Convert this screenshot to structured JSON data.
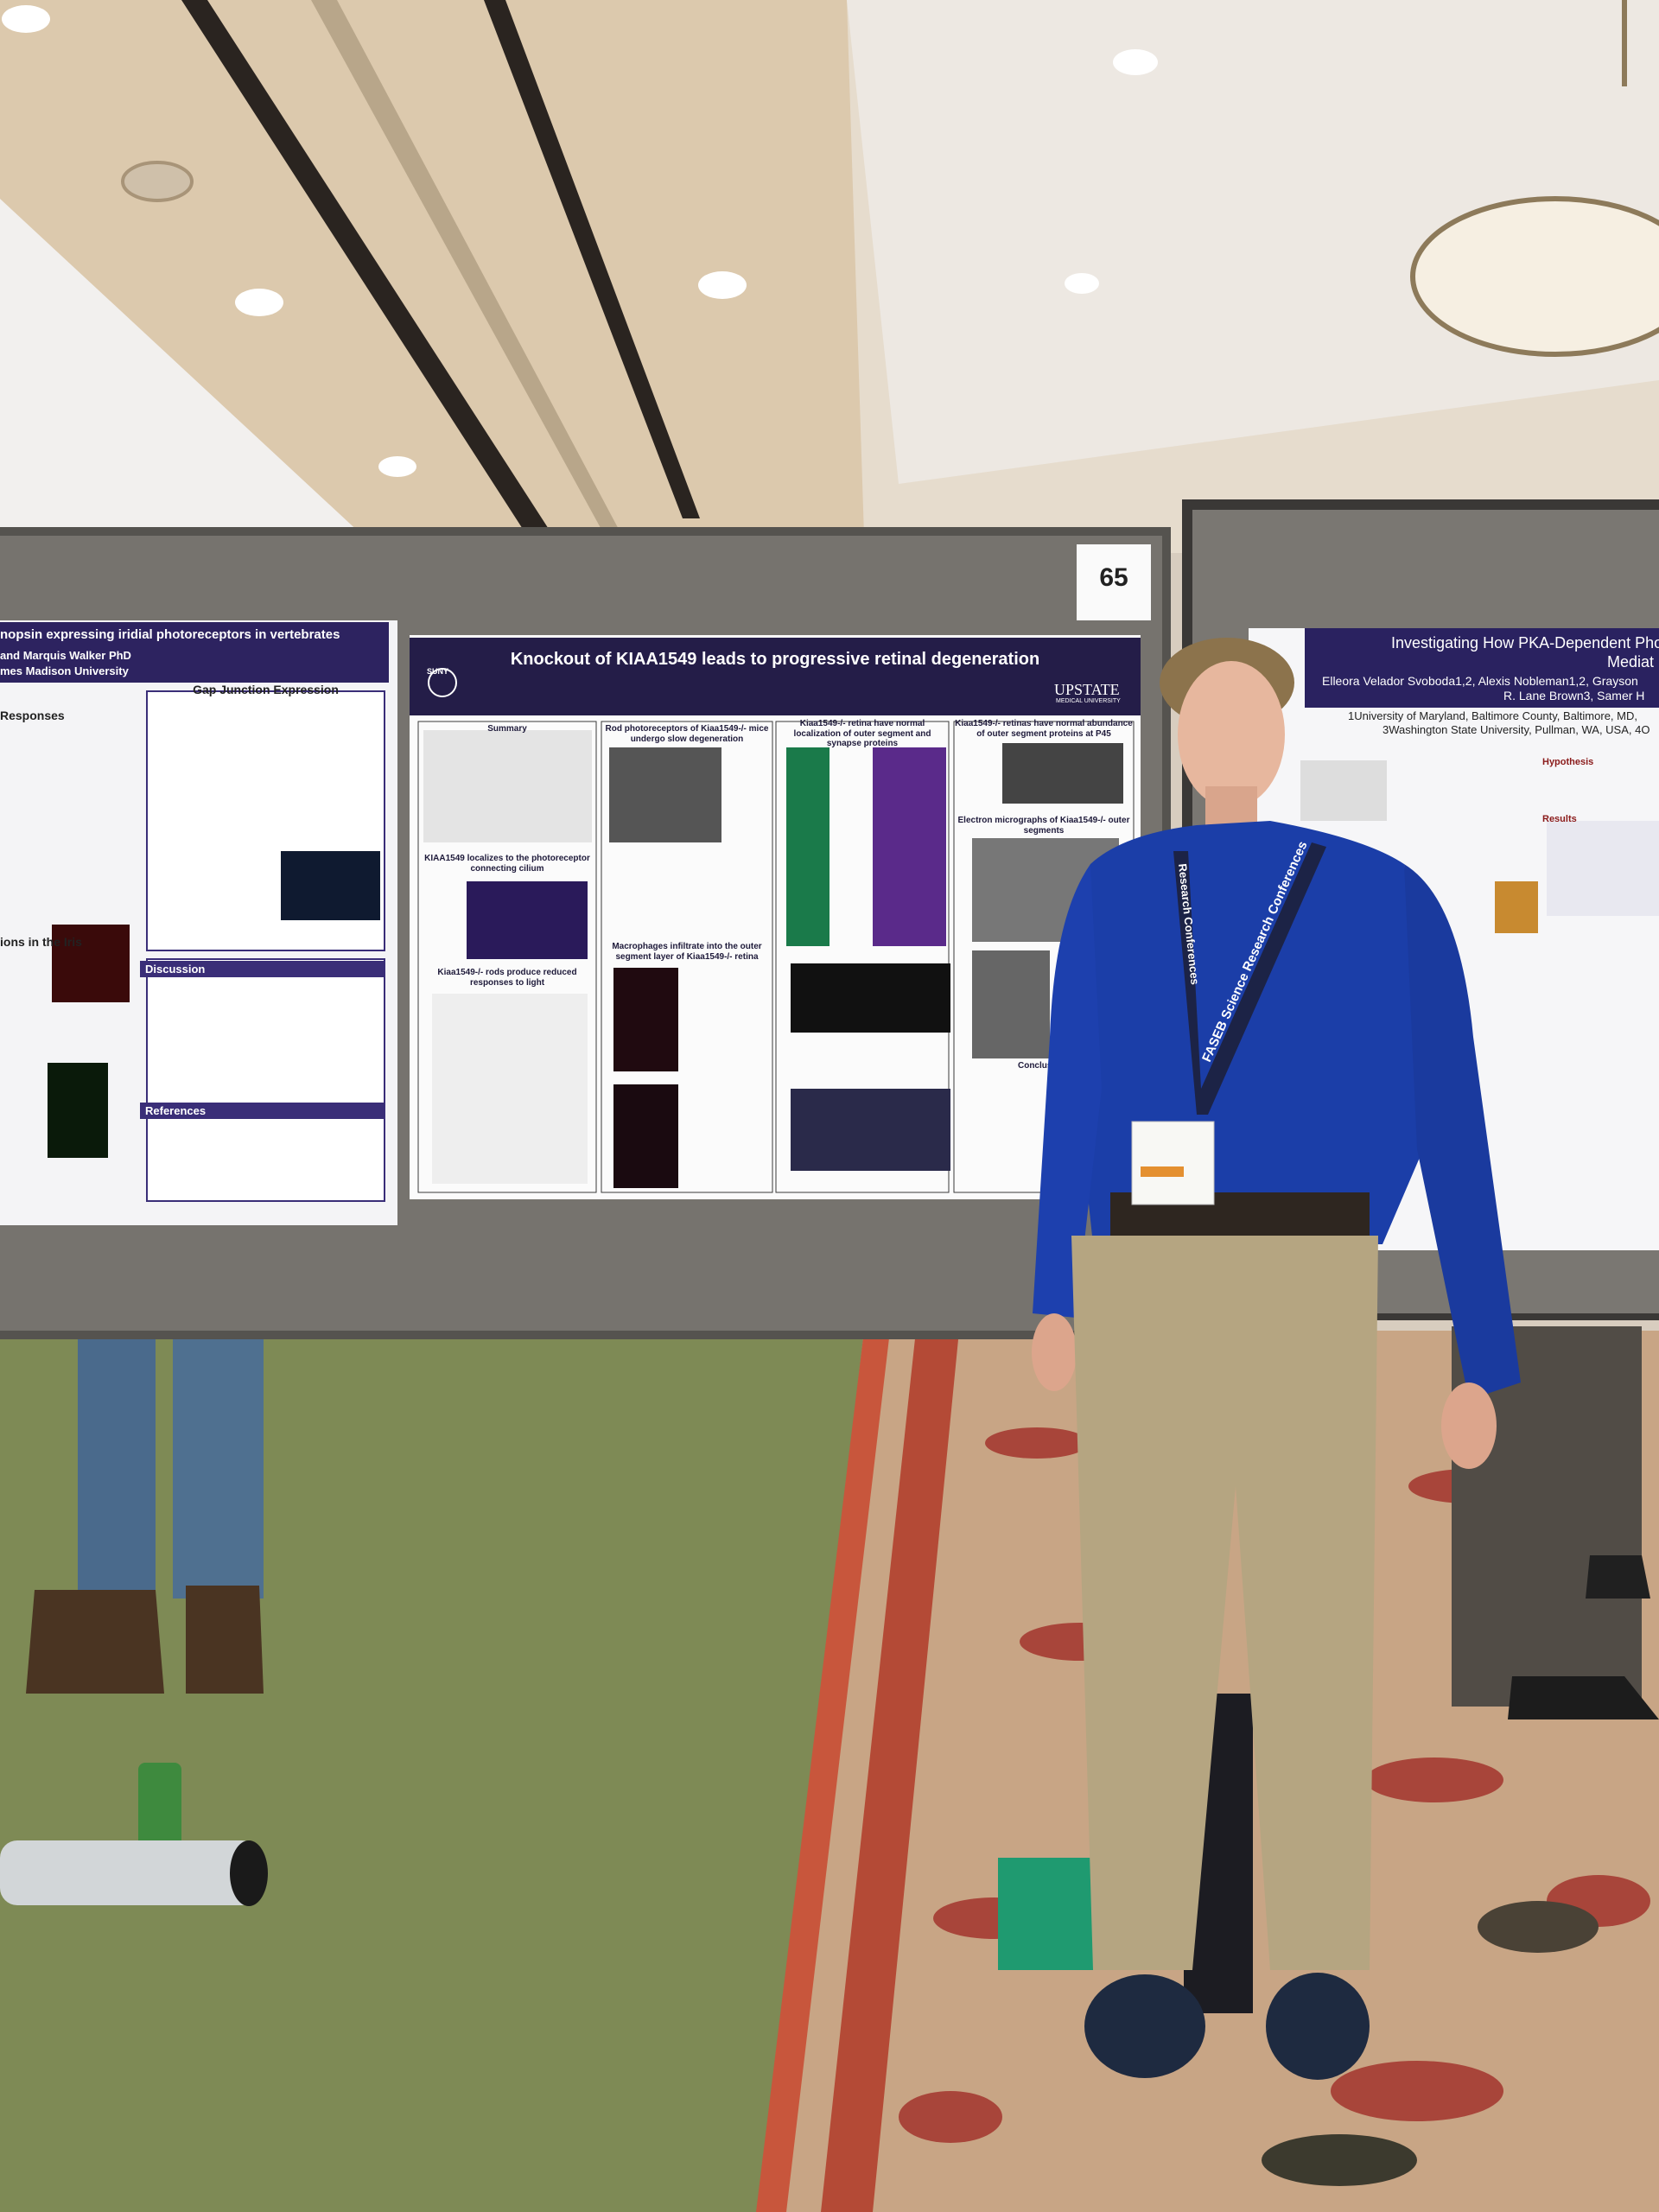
{
  "signage": {
    "board_number": "65"
  },
  "main_poster": {
    "title": "Knockout of KIAA1549 leads to progressive retinal degeneration",
    "logo_left": "SUNY",
    "logo_right": "UPSTATE",
    "logo_right_sub": "MEDICAL UNIVERSITY",
    "sections": [
      "Summary",
      "KIAA1549 localizes to the photoreceptor connecting cilium",
      "Kiaa1549-/- rods produce reduced responses to light",
      "Rod photoreceptors of Kiaa1549-/- mice undergo slow degeneration",
      "Macrophages infiltrate into the outer segment layer of Kiaa1549-/- retina",
      "Kiaa1549-/- retina have normal localization of outer segment and synapse proteins",
      "Kiaa1549-/- retinas have normal abundance of outer segment proteins at P45",
      "Electron micrographs of Kiaa1549-/- outer segments",
      "Conclusions"
    ]
  },
  "left_poster": {
    "title": "nopsin expressing iridial photoreceptors in vertebrates",
    "authors": "and Marquis Walker PhD",
    "affiliation": "mes Madison University",
    "sections": [
      "Gap Junction Expression",
      "Responses",
      "ions in the Iris",
      "Discussion",
      "References"
    ]
  },
  "right_poster": {
    "title": "Investigating How PKA-Dependent Pho",
    "title_line2": "Mediat",
    "authors": "Elleora Velador Svoboda1,2, Alexis Nobleman1,2, Grayson",
    "authors_line2": "R. Lane Brown3, Samer H",
    "affiliation": "1University of Maryland, Baltimore County, Baltimore, MD,",
    "affiliation_line2": "3Washington State University, Pullman, WA, USA, 4O",
    "sections": [
      "Hypothesis",
      "Results"
    ]
  },
  "lanyard": {
    "text": "FASEB Science Research Conferences",
    "text_left": "Research Conferences"
  }
}
